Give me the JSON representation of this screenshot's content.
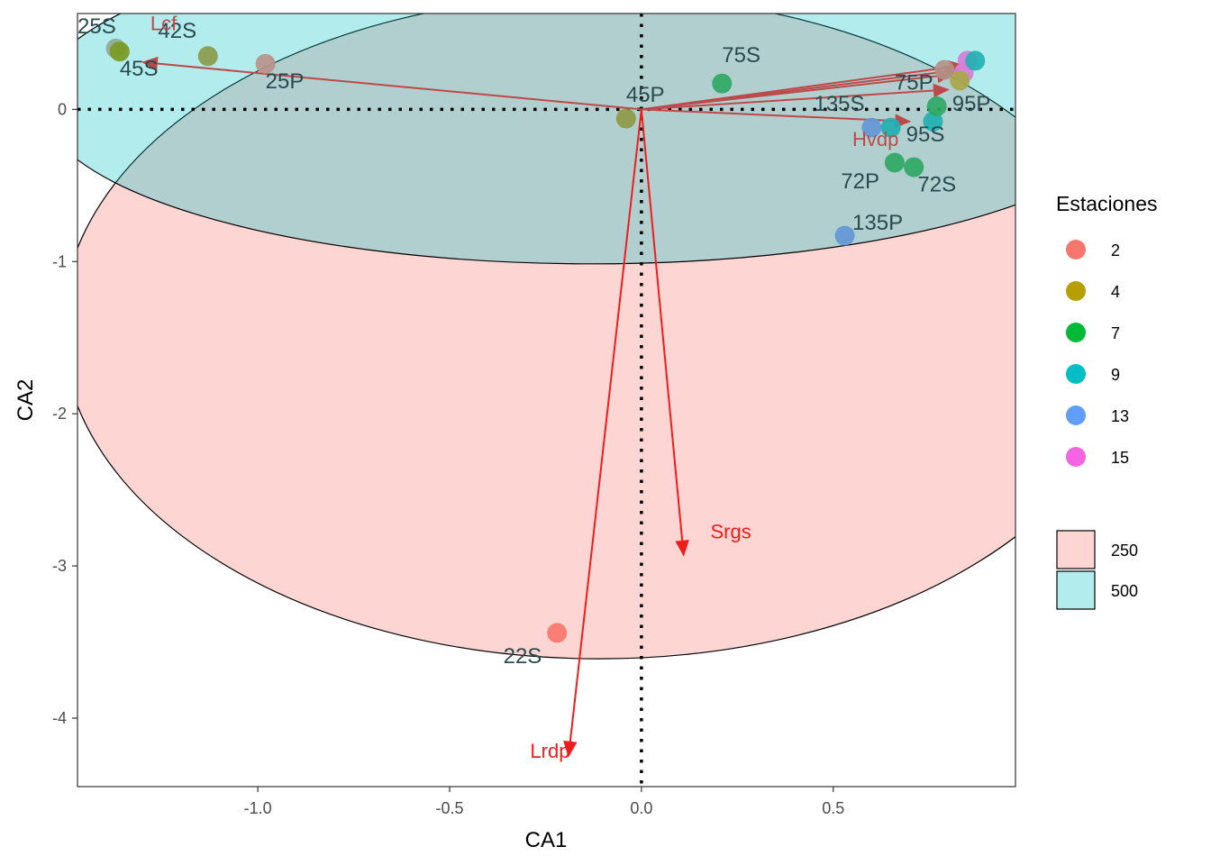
{
  "chart_data": {
    "type": "scatter",
    "xlabel": "CA1",
    "ylabel": "CA2",
    "xlim": [
      -1.47,
      0.975
    ],
    "ylim": [
      -4.45,
      0.63
    ],
    "x_ticks": [
      -1.0,
      -0.5,
      0.0,
      0.5
    ],
    "x_tick_labels": [
      "-1.0",
      "-0.5",
      "0.0",
      "0.5"
    ],
    "y_ticks": [
      0,
      -1,
      -2,
      -3,
      -4
    ],
    "y_tick_labels": [
      "0",
      "-1",
      "-2",
      "-3",
      "-4"
    ],
    "grid": false,
    "reference_lines": {
      "x": 0,
      "y": 0,
      "style": "dotted"
    },
    "legend": {
      "placement": "right",
      "color_title": "Estaciones",
      "color_entries": [
        {
          "label": "2",
          "color": "#F8766D"
        },
        {
          "label": "4",
          "color": "#B79F00"
        },
        {
          "label": "7",
          "color": "#00BA38"
        },
        {
          "label": "9",
          "color": "#00BFC4"
        },
        {
          "label": "13",
          "color": "#619CFF"
        },
        {
          "label": "15",
          "color": "#F564E3"
        }
      ],
      "fill_entries": [
        {
          "label": "250",
          "color": "#F8766D"
        },
        {
          "label": "500",
          "color": "#00BFC4"
        }
      ]
    },
    "ellipses": [
      {
        "group": "250",
        "fill": "#F8766D",
        "center": [
          -0.11,
          -1.43
        ],
        "radius": [
          1.4,
          2.18
        ]
      },
      {
        "group": "500",
        "fill": "#00BFC4",
        "center": [
          -0.13,
          0.065
        ],
        "radius": [
          1.44,
          1.08
        ]
      }
    ],
    "points": [
      {
        "label": "25S",
        "station": "2",
        "x": -1.37,
        "y": 0.4,
        "label_pos": [
          -1.47,
          0.5
        ],
        "color": "#8FA896"
      },
      {
        "label": "45S",
        "station": "4",
        "x": -1.36,
        "y": 0.38,
        "label_pos": [
          -1.36,
          0.22
        ],
        "color": "#7A9A22"
      },
      {
        "label": "42S",
        "station": "4",
        "x": -1.13,
        "y": 0.35,
        "label_pos": [
          -1.26,
          0.47
        ],
        "color": "#8A9A4A"
      },
      {
        "label": "25P",
        "station": "2",
        "x": -0.98,
        "y": 0.3,
        "label_pos": [
          -0.98,
          0.14
        ],
        "color": "#B9928A"
      },
      {
        "label": "45P",
        "station": "4",
        "x": -0.04,
        "y": -0.06,
        "label_pos": [
          -0.04,
          0.05
        ],
        "color": "#8E9A44"
      },
      {
        "label": "75S",
        "station": "7",
        "x": 0.21,
        "y": 0.17,
        "label_pos": [
          0.21,
          0.31
        ],
        "color": "#2FA864"
      },
      {
        "label": "75P",
        "station": "7",
        "x": 0.79,
        "y": 0.26,
        "label_pos": [
          0.66,
          0.13
        ],
        "color": "#B48F84"
      },
      {
        "label": "135S",
        "station": "13",
        "x": 0.6,
        "y": -0.12,
        "label_pos": [
          0.45,
          -0.01
        ],
        "color": "#6398D8"
      },
      {
        "label": "95P",
        "station": "9",
        "x": 0.76,
        "y": -0.08,
        "label_pos": [
          0.81,
          -0.01
        ],
        "color": "#22B0B2"
      },
      {
        "label": "95S",
        "station": "9",
        "x": 0.65,
        "y": -0.12,
        "label_pos": [
          0.69,
          -0.21
        ],
        "color": "#22B0B2"
      },
      {
        "label": "72P",
        "station": "7",
        "x": 0.66,
        "y": -0.35,
        "label_pos": [
          0.52,
          -0.52
        ],
        "color": "#2FA864"
      },
      {
        "label": "72S",
        "station": "7",
        "x": 0.71,
        "y": -0.38,
        "label_pos": [
          0.72,
          -0.54
        ],
        "color": "#2FA864"
      },
      {
        "label": "135P",
        "station": "13",
        "x": 0.53,
        "y": -0.83,
        "label_pos": [
          0.55,
          -0.79
        ],
        "color": "#6398D8"
      },
      {
        "label": "22S",
        "station": "2",
        "x": -0.22,
        "y": -3.44,
        "label_pos": [
          -0.36,
          -3.64
        ],
        "color": "#F8766D"
      },
      {
        "label": "",
        "station": "15",
        "x": 0.85,
        "y": 0.32,
        "color": "#D77ED8"
      },
      {
        "label": "",
        "station": "15",
        "x": 0.84,
        "y": 0.24,
        "color": "#D77ED8"
      },
      {
        "label": "",
        "station": "9",
        "x": 0.87,
        "y": 0.32,
        "color": "#22B0B2"
      },
      {
        "label": "",
        "station": "4",
        "x": 0.83,
        "y": 0.19,
        "color": "#A9A64A"
      },
      {
        "label": "",
        "station": "7",
        "x": 0.77,
        "y": 0.02,
        "color": "#2FA864"
      }
    ],
    "vectors": [
      {
        "label": "Lcf",
        "x": -1.3,
        "y": 0.31,
        "label_pos": [
          -1.28,
          0.52
        ],
        "color": "#BD4A4A"
      },
      {
        "label": "Hvdp",
        "x": 0.7,
        "y": -0.08,
        "label_pos": [
          0.55,
          -0.24
        ],
        "color": "#BD4A4A"
      },
      {
        "label": "Srgs",
        "x": 0.11,
        "y": -2.93,
        "label_pos": [
          0.18,
          -2.82
        ],
        "color": "#F01D1D"
      },
      {
        "label": "Lrdp",
        "x": -0.19,
        "y": -4.25,
        "label_pos": [
          -0.29,
          -4.26
        ],
        "color": "#F01D1D"
      },
      {
        "label": "",
        "x": 0.84,
        "y": 0.29,
        "color": "#BD4A4A"
      },
      {
        "label": "",
        "x": 0.83,
        "y": 0.26,
        "color": "#BD4A4A"
      },
      {
        "label": "",
        "x": 0.81,
        "y": 0.23,
        "color": "#BD4A4A"
      },
      {
        "label": "",
        "x": 0.8,
        "y": 0.13,
        "color": "#BD4A4A"
      }
    ]
  }
}
